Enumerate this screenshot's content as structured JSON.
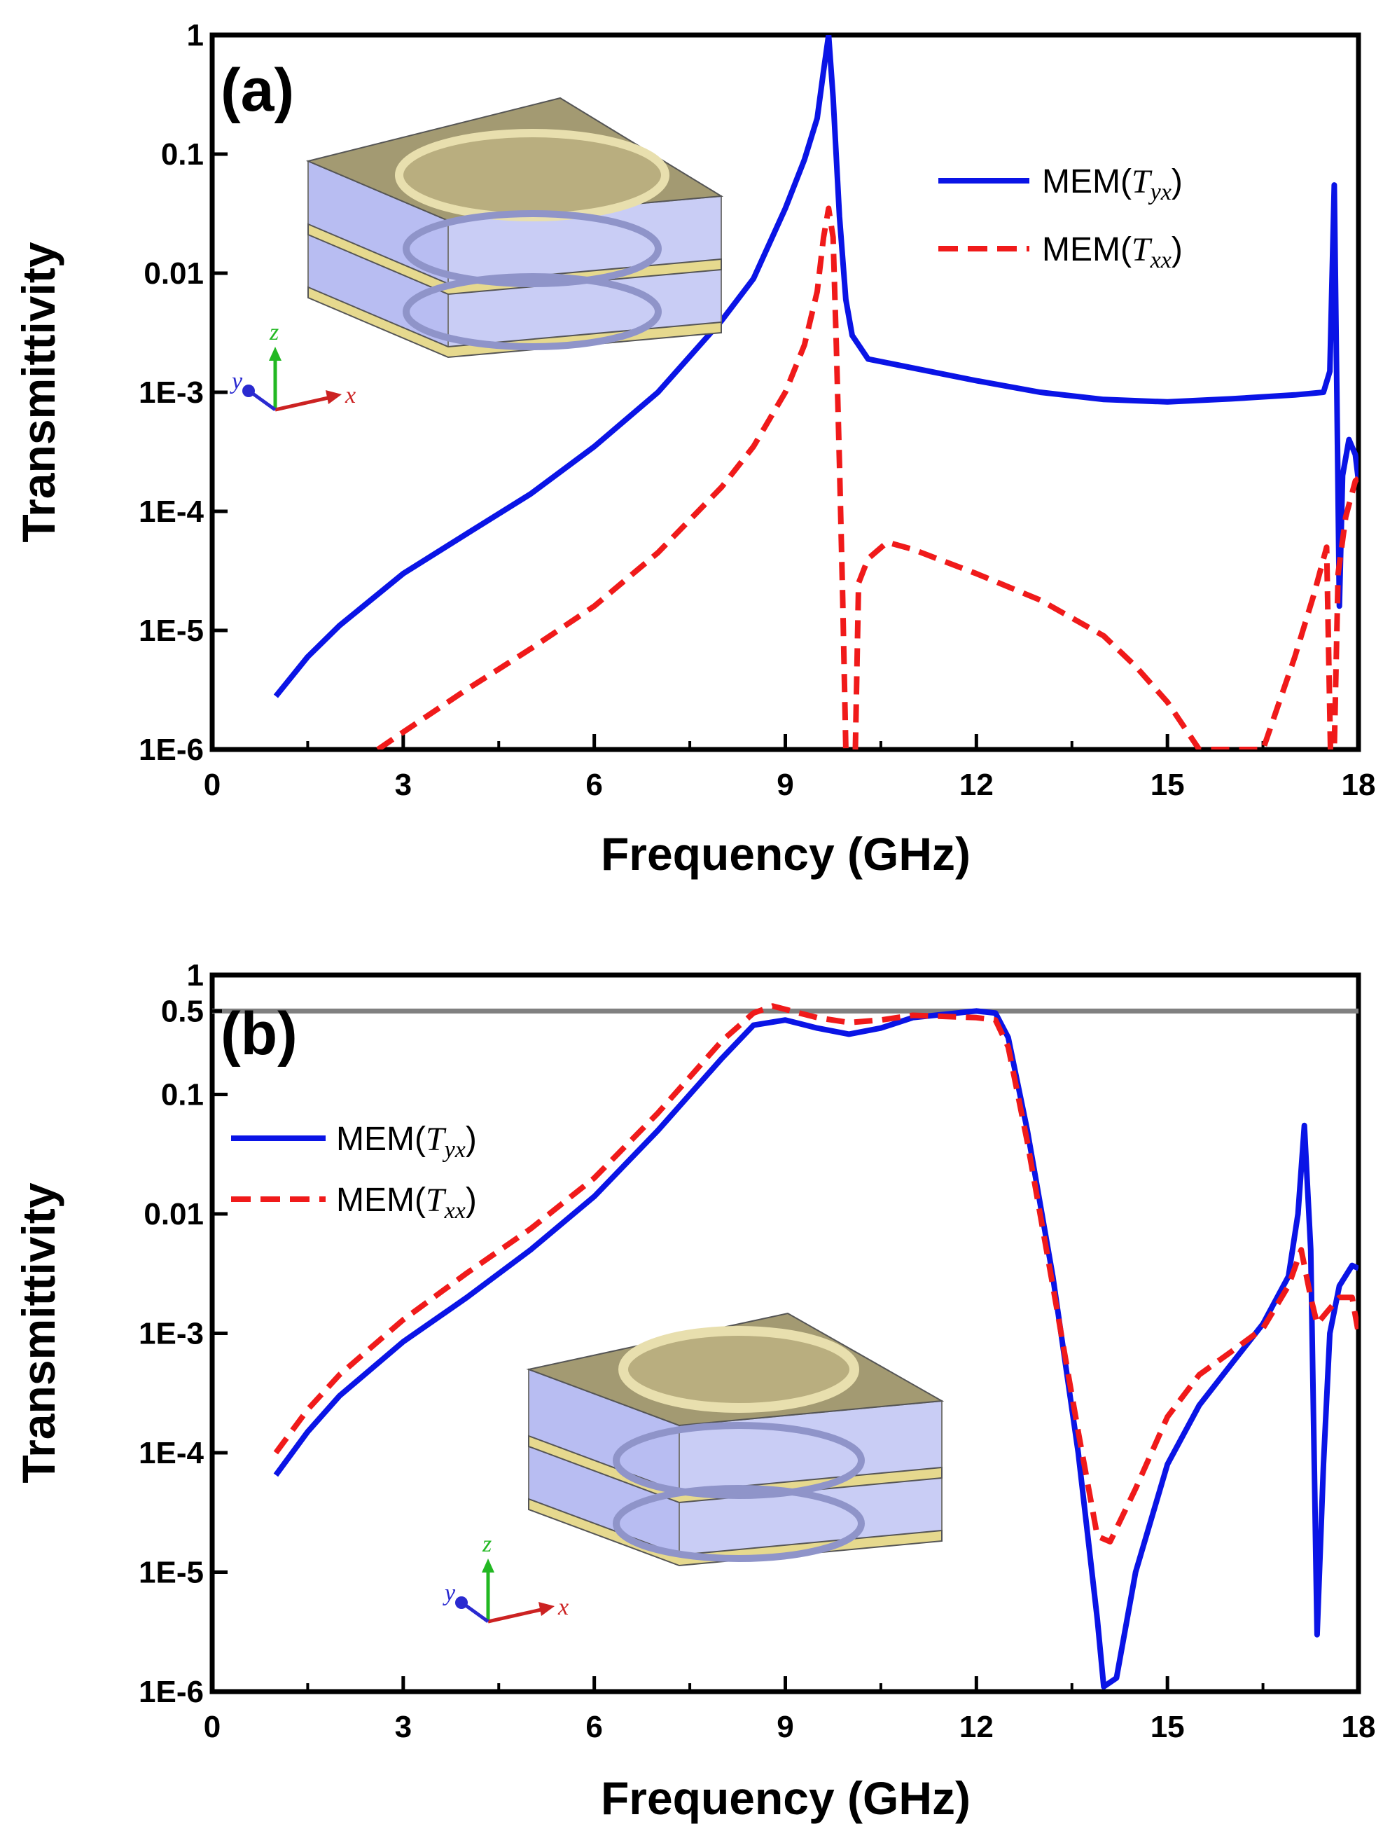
{
  "chart_data": [
    {
      "type": "line",
      "panel_label": "(a)",
      "xlabel": "Frequency (GHz)",
      "ylabel": "Transmittivity",
      "xlim": [
        0,
        18
      ],
      "ylim": [
        1e-06,
        1
      ],
      "yscale": "log",
      "x_ticks": [
        0,
        3,
        6,
        9,
        12,
        15,
        18
      ],
      "x_tick_labels": [
        "0",
        "3",
        "6",
        "9",
        "12",
        "15",
        "18"
      ],
      "y_ticks": [
        1e-06,
        1e-05,
        0.0001,
        0.001,
        0.01,
        0.1,
        1
      ],
      "y_tick_labels": [
        "1E-6",
        "1E-5",
        "1E-4",
        "1E-3",
        "0.01",
        "0.1",
        "1"
      ],
      "legend_position": "upper-right",
      "series": [
        {
          "name": "MEM(Tyx)",
          "legend_prefix": "MEM(",
          "legend_sub": "T",
          "legend_subscript": "yx",
          "legend_suffix": ")",
          "color": "#0a14e6",
          "dash": "solid",
          "points": [
            [
              1,
              2.8e-06
            ],
            [
              1.5,
              6e-06
            ],
            [
              2,
              1.1e-05
            ],
            [
              3,
              3e-05
            ],
            [
              4,
              6.5e-05
            ],
            [
              5,
              0.00014
            ],
            [
              6,
              0.00035
            ],
            [
              7,
              0.001
            ],
            [
              8,
              0.004
            ],
            [
              8.5,
              0.009
            ],
            [
              9,
              0.035
            ],
            [
              9.3,
              0.09
            ],
            [
              9.5,
              0.2
            ],
            [
              9.6,
              0.5
            ],
            [
              9.68,
              1.0
            ],
            [
              9.75,
              0.3
            ],
            [
              9.85,
              0.03
            ],
            [
              9.95,
              0.006
            ],
            [
              10.05,
              0.003
            ],
            [
              10.3,
              0.0019
            ],
            [
              11,
              0.0016
            ],
            [
              12,
              0.00125
            ],
            [
              13,
              0.001
            ],
            [
              14,
              0.00087
            ],
            [
              15,
              0.00083
            ],
            [
              16,
              0.00088
            ],
            [
              17,
              0.00095
            ],
            [
              17.45,
              0.001
            ],
            [
              17.55,
              0.0015
            ],
            [
              17.62,
              0.055
            ],
            [
              17.66,
              0.001
            ],
            [
              17.7,
              1.6e-05
            ],
            [
              17.75,
              0.0002
            ],
            [
              17.85,
              0.0004
            ],
            [
              17.95,
              0.0003
            ],
            [
              18,
              0.00018
            ]
          ]
        },
        {
          "name": "MEM(Txx)",
          "legend_prefix": "MEM(",
          "legend_sub": "T",
          "legend_subscript": "xx",
          "legend_suffix": ")",
          "color": "#f01a1a",
          "dash": "dashed",
          "points": [
            [
              2.6,
              1e-06
            ],
            [
              3,
              1.4e-06
            ],
            [
              4,
              3.2e-06
            ],
            [
              5,
              7e-06
            ],
            [
              6,
              1.6e-05
            ],
            [
              7,
              4.5e-05
            ],
            [
              8,
              0.00016
            ],
            [
              8.5,
              0.00035
            ],
            [
              9,
              0.001
            ],
            [
              9.3,
              0.0025
            ],
            [
              9.5,
              0.007
            ],
            [
              9.6,
              0.02
            ],
            [
              9.68,
              0.035
            ],
            [
              9.75,
              0.02
            ],
            [
              9.8,
              0.0025
            ],
            [
              9.85,
              0.00025
            ],
            [
              9.9,
              2e-05
            ],
            [
              9.95,
              1e-06
            ],
            [
              10.1,
              1e-06
            ],
            [
              10.15,
              2.5e-05
            ],
            [
              10.3,
              4e-05
            ],
            [
              10.6,
              5.5e-05
            ],
            [
              11,
              4.8e-05
            ],
            [
              12,
              3e-05
            ],
            [
              13,
              1.8e-05
            ],
            [
              14,
              9e-06
            ],
            [
              14.5,
              5e-06
            ],
            [
              15,
              2.5e-06
            ],
            [
              15.5,
              1e-06
            ],
            [
              16.5,
              1e-06
            ],
            [
              17,
              6e-06
            ],
            [
              17.3,
              2e-05
            ],
            [
              17.5,
              5e-05
            ],
            [
              17.56,
              1e-06
            ],
            [
              17.62,
              1e-06
            ],
            [
              17.68,
              3e-05
            ],
            [
              17.8,
              9e-05
            ],
            [
              17.95,
              0.00018
            ],
            [
              18,
              0.00019
            ]
          ]
        }
      ]
    },
    {
      "type": "line",
      "panel_label": "(b)",
      "xlabel": "Frequency (GHz)",
      "ylabel": "Transmittivity",
      "xlim": [
        0,
        18
      ],
      "ylim": [
        1e-06,
        1
      ],
      "yscale": "log",
      "x_ticks": [
        0,
        3,
        6,
        9,
        12,
        15,
        18
      ],
      "x_tick_labels": [
        "0",
        "3",
        "6",
        "9",
        "12",
        "15",
        "18"
      ],
      "y_ticks": [
        1e-06,
        1e-05,
        0.0001,
        0.001,
        0.01,
        0.1,
        0.5,
        1
      ],
      "y_tick_labels": [
        "1E-6",
        "1E-5",
        "1E-4",
        "1E-3",
        "0.01",
        "0.1",
        "0.5",
        "1"
      ],
      "reference_line": {
        "y": 0.5,
        "color": "#808080"
      },
      "legend_position": "upper-left",
      "series": [
        {
          "name": "MEM(Tyx)",
          "legend_prefix": "MEM(",
          "legend_sub": "T",
          "legend_subscript": "yx",
          "legend_suffix": ")",
          "color": "#0a14e6",
          "dash": "solid",
          "points": [
            [
              1,
              6.5e-05
            ],
            [
              1.5,
              0.00015
            ],
            [
              2,
              0.0003
            ],
            [
              3,
              0.00085
            ],
            [
              4,
              0.002
            ],
            [
              5,
              0.005
            ],
            [
              6,
              0.014
            ],
            [
              7,
              0.05
            ],
            [
              8,
              0.2
            ],
            [
              8.5,
              0.38
            ],
            [
              9,
              0.42
            ],
            [
              9.5,
              0.36
            ],
            [
              10,
              0.32
            ],
            [
              10.5,
              0.36
            ],
            [
              11,
              0.44
            ],
            [
              12,
              0.5
            ],
            [
              12.3,
              0.48
            ],
            [
              12.5,
              0.3
            ],
            [
              12.8,
              0.05
            ],
            [
              13.2,
              0.003
            ],
            [
              13.6,
              0.0001
            ],
            [
              13.9,
              4e-06
            ],
            [
              14,
              1.1e-06
            ],
            [
              14.2,
              1.3e-06
            ],
            [
              14.5,
              1e-05
            ],
            [
              15,
              8e-05
            ],
            [
              15.5,
              0.00025
            ],
            [
              16,
              0.00055
            ],
            [
              16.5,
              0.0012
            ],
            [
              16.9,
              0.003
            ],
            [
              17.05,
              0.01
            ],
            [
              17.15,
              0.055
            ],
            [
              17.25,
              0.005
            ],
            [
              17.35,
              3e-06
            ],
            [
              17.45,
              8e-05
            ],
            [
              17.55,
              0.001
            ],
            [
              17.7,
              0.0025
            ],
            [
              17.9,
              0.0037
            ],
            [
              18,
              0.0035
            ]
          ]
        },
        {
          "name": "MEM(Txx)",
          "legend_prefix": "MEM(",
          "legend_sub": "T",
          "legend_subscript": "xx",
          "legend_suffix": ")",
          "color": "#f01a1a",
          "dash": "dashed",
          "points": [
            [
              1,
              0.0001
            ],
            [
              1.5,
              0.00023
            ],
            [
              2,
              0.00045
            ],
            [
              3,
              0.0013
            ],
            [
              4,
              0.0032
            ],
            [
              5,
              0.0075
            ],
            [
              6,
              0.02
            ],
            [
              7,
              0.07
            ],
            [
              8,
              0.28
            ],
            [
              8.5,
              0.48
            ],
            [
              8.8,
              0.55
            ],
            [
              9.5,
              0.44
            ],
            [
              10,
              0.4
            ],
            [
              10.5,
              0.42
            ],
            [
              11,
              0.46
            ],
            [
              12,
              0.44
            ],
            [
              12.3,
              0.42
            ],
            [
              12.5,
              0.25
            ],
            [
              12.8,
              0.04
            ],
            [
              13.2,
              0.0025
            ],
            [
              13.6,
              0.00015
            ],
            [
              13.9,
              2e-05
            ],
            [
              14.1,
              1.8e-05
            ],
            [
              14.5,
              5e-05
            ],
            [
              15,
              0.0002
            ],
            [
              15.5,
              0.00045
            ],
            [
              16,
              0.0007
            ],
            [
              16.5,
              0.0011
            ],
            [
              16.9,
              0.0025
            ],
            [
              17.1,
              0.005
            ],
            [
              17.25,
              0.002
            ],
            [
              17.35,
              0.0012
            ],
            [
              17.5,
              0.0015
            ],
            [
              17.7,
              0.002
            ],
            [
              17.9,
              0.002
            ],
            [
              18,
              0.001
            ]
          ]
        }
      ]
    }
  ],
  "axis_triads": [
    {
      "x": "x",
      "y": "y",
      "z": "z"
    },
    {
      "x": "x",
      "y": "y",
      "z": "z"
    }
  ],
  "colors": {
    "metal": "#a39a72",
    "metal_top": "#b9ae7f",
    "dielectric": "#b8bdf2",
    "axis_x": "#cc2222",
    "axis_y": "#2a2ad0",
    "axis_z": "#22b822"
  }
}
